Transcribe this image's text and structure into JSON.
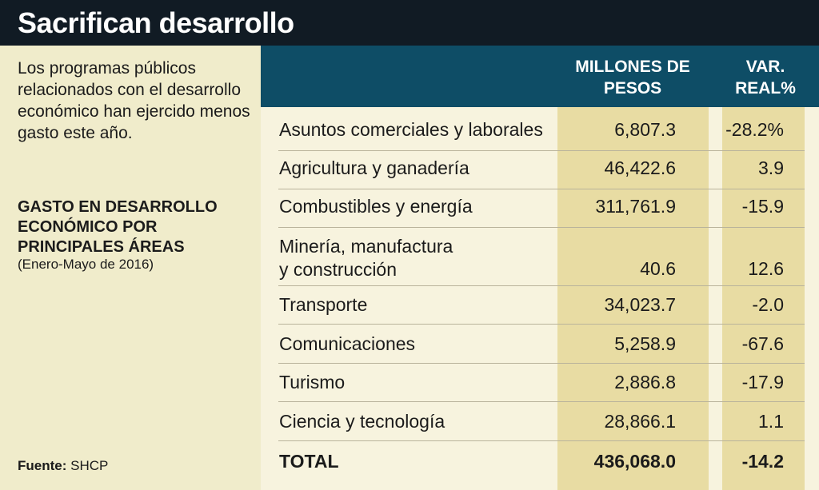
{
  "title": "Sacrifican desarrollo",
  "intro_text": "Los programas públicos relacionados con el desarrollo económico han ejercido menos gasto este año.",
  "table_title": "GASTO EN DESARROLLO ECONÓMICO POR PRINCIPALES ÁREAS",
  "period": "(Enero-Mayo de 2016)",
  "source_label": "Fuente:",
  "source_value": "SHCP",
  "columns": {
    "millones": "MILLONES DE PESOS",
    "var": "VAR. REAL%"
  },
  "colors": {
    "title_bar": "#111b24",
    "header_band": "#0e4d66",
    "highlight_column": "#e8dca3",
    "background": "#f4f0d6"
  },
  "chart_data": {
    "type": "table",
    "columns": [
      "",
      "MILLONES DE PESOS",
      "VAR. REAL%"
    ],
    "rows": [
      {
        "area": "Asuntos comerciales y laborales",
        "millones": "6,807.3",
        "var": "-28.2%"
      },
      {
        "area": "Agricultura y ganadería",
        "millones": "46,422.6",
        "var": "3.9"
      },
      {
        "area": "Combustibles y energía",
        "millones": "311,761.9",
        "var": "-15.9"
      },
      {
        "area": "Minería, manufactura y construcción",
        "area_lines": [
          "Minería, manufactura",
          "y construcción"
        ],
        "millones": "40.6",
        "var": "12.6"
      },
      {
        "area": "Transporte",
        "millones": "34,023.7",
        "var": "-2.0"
      },
      {
        "area": "Comunicaciones",
        "millones": "5,258.9",
        "var": "-67.6"
      },
      {
        "area": "Turismo",
        "millones": "2,886.8",
        "var": "-17.9"
      },
      {
        "area": "Ciencia y tecnología",
        "millones": "28,866.1",
        "var": "1.1"
      }
    ],
    "total": {
      "area": "TOTAL",
      "millones": "436,068.0",
      "var": "-14.2"
    }
  }
}
